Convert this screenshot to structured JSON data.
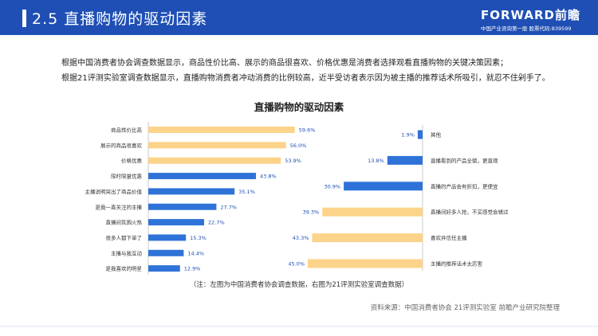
{
  "header": {
    "title": "2.5  直播购物的驱动因素",
    "logo": "FORWARD前瞻",
    "logo_sub": "中国产业咨询第一股  股票代码:839599"
  },
  "paragraphs": [
    "根据中国消费者协会调查数据显示，商品性价比高、展示的商品很喜欢、价格优惠是消费者选择观看直播购物的关键决策因素；",
    "根据21评测实验室调查数据显示，直播购物消费者冲动消费的比例较高，近半受访者表示因为被主播的推荐话术所吸引，就忍不住剁手了。"
  ],
  "note": "（注：左图为中国消费者协会调查数据，右图为21评测实验室调查数据）",
  "source": "资料来源：中国消费者协会 21评测实验室 前瞻产业研究院整理",
  "colors": {
    "orange": "#fcd38a",
    "blue": "#2f73d9",
    "header": "#1f4fb4"
  },
  "chart_data": [
    {
      "type": "bar",
      "orientation": "horizontal",
      "title": "直播购物的驱动因素",
      "categories": [
        "商品性价比高",
        "展示的商品很喜欢",
        "价格优惠",
        "限时限量优惠",
        "主播说明突出了商品价值",
        "是我一直关注的主播",
        "直播间氛围火热",
        "很多人都下单了",
        "主播与我互动",
        "是我喜欢的明星"
      ],
      "values": [
        59.6,
        56.0,
        53.9,
        43.8,
        35.1,
        27.7,
        22.7,
        15.3,
        14.4,
        12.9
      ],
      "labels": [
        "59.6%",
        "56.0%",
        "53.9%",
        "43.8%",
        "35.1%",
        "27.7%",
        "22.7%",
        "15.3%",
        "14.4%",
        "12.9%"
      ],
      "bar_colors": [
        "orange",
        "orange",
        "orange",
        "blue",
        "blue",
        "blue",
        "blue",
        "blue",
        "blue",
        "blue"
      ],
      "xlim": [
        0,
        60
      ]
    },
    {
      "type": "bar",
      "orientation": "horizontal",
      "direction": "leftward",
      "categories": [
        "其他",
        "直播看到的产品全貌，更直观",
        "直播的产品会有折扣，更便宜",
        "直播间好多人抢，不买感觉会错过",
        "喜欢并信任主播",
        "主播的推荐话术太厉害"
      ],
      "values": [
        1.9,
        13.8,
        30.9,
        39.3,
        43.3,
        45.0
      ],
      "labels": [
        "1.9%",
        "13.8%",
        "30.9%",
        "39.3%",
        "43.3%",
        "45.0%"
      ],
      "bar_colors": [
        "blue",
        "blue",
        "blue",
        "orange",
        "orange",
        "orange"
      ],
      "xlim": [
        0,
        50
      ]
    }
  ]
}
